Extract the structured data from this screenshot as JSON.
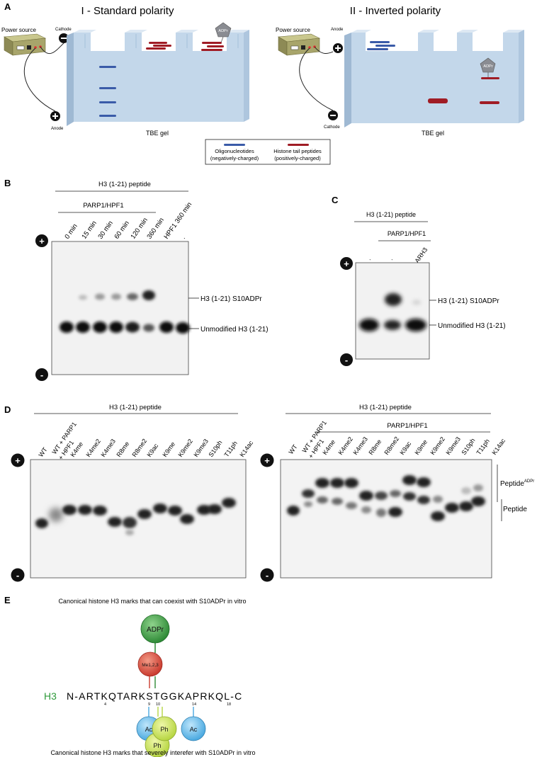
{
  "panel_letters": {
    "a": "A",
    "b": "B",
    "c": "C",
    "d": "D",
    "e": "E"
  },
  "panel_a": {
    "title_left": "I - Standard polarity",
    "title_right": "II - Inverted polarity",
    "power_source": "Power source",
    "cathode": "Cathode",
    "anode": "Anode",
    "gel_label": "TBE gel",
    "adpr": "ADPr",
    "legend": {
      "oligo_line1": "Oligonucleotides",
      "oligo_line2": "(negatively-charged)",
      "histone_line1": "Histone tail peptides",
      "histone_line2": "(positively-charged)"
    },
    "colors": {
      "oligo": "#3a5ba8",
      "histone": "#a01c25",
      "gel": "#c3d7ea",
      "adpr": "#8a8c92"
    }
  },
  "panel_b": {
    "header": "H3 (1-21) peptide",
    "subheader": "PARP1/HPF1",
    "lanes": [
      "0 min",
      "15 min",
      "30 min",
      "60 min",
      "120 min",
      "360 min",
      "HPF1 360 min",
      "."
    ],
    "band_upper": "H3 (1-21) S10ADPr",
    "band_lower": "Unmodified H3 (1-21)",
    "plus": "+",
    "minus": "-"
  },
  "panel_c": {
    "header": "H3 (1-21) peptide",
    "subheader": "PARP1/HPF1",
    "lanes": [
      ".",
      ".",
      "ARH3"
    ],
    "band_upper": "H3 (1-21) S10ADPr",
    "band_lower": "Unmodified H3 (1-21)"
  },
  "panel_d": {
    "left_header": "H3 (1-21) peptide",
    "left_lanes": [
      "WT",
      "WT + PARP1",
      "+ HPF1",
      "K4me",
      "K4me2",
      "K4me3",
      "R8me",
      "R8me2",
      "K9ac",
      "K9me",
      "K9me2",
      "K9me3",
      "S10ph",
      "T11ph",
      "K14ac"
    ],
    "right_header": "H3 (1-21) peptide",
    "right_subheader": "PARP1/HPF1",
    "right_lanes": [
      "WT",
      "WT + PARP1",
      "+ HPF1",
      "K4me",
      "K4me2",
      "K4me3",
      "R8me",
      "R8me2",
      "K9ac",
      "K9me",
      "K9me2",
      "K9me3",
      "S10ph",
      "T11ph",
      "K14ac"
    ],
    "label_peptide_adpr": "Peptide",
    "label_peptide_adpr_sup": "ADPr",
    "label_peptide": "Peptide"
  },
  "panel_e": {
    "title_top": "Canonical histone H3 marks that can coexist with S10ADPr in vitro",
    "title_bottom": "Canonical histone H3 marks that severely interefer with S10ADPr in vitro",
    "h3": "H3",
    "sequence": "N-ARTKQTARKSTGGKAPRKQL-C",
    "pos_4": "4",
    "pos_9": "9",
    "pos_10": "10",
    "pos_14": "14",
    "pos_18": "18",
    "adpr": "ADPr",
    "me": "Me1,2,3",
    "ac1": "Ac",
    "ph1": "Ph",
    "ph2": "Ph",
    "ac2": "Ac",
    "colors": {
      "h3": "#2e9a3a",
      "adpr": "#2e8a36",
      "me": "#c93a2e",
      "ac": "#4aa9e0",
      "ph": "#b7d642"
    }
  }
}
